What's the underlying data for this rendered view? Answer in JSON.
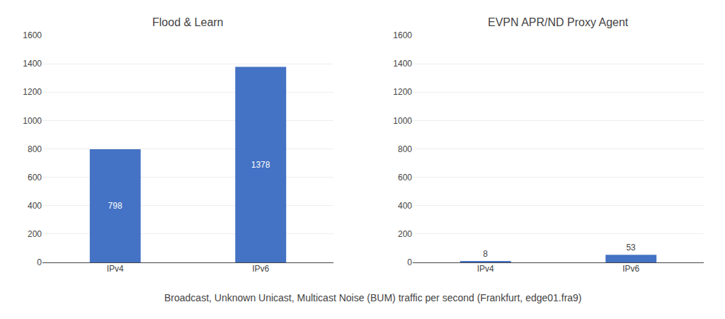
{
  "chart_data": [
    {
      "type": "bar",
      "title": "Flood & Learn",
      "categories": [
        "IPv4",
        "IPv6"
      ],
      "values": [
        798,
        1378
      ],
      "color": "#4472C4",
      "ylim": [
        0,
        1600
      ],
      "yticks": [
        0,
        200,
        400,
        600,
        800,
        1000,
        1200,
        1400,
        1600
      ],
      "grid": true,
      "data_labels": true
    },
    {
      "type": "bar",
      "title": "EVPN APR/ND Proxy Agent",
      "categories": [
        "IPv4",
        "IPv6"
      ],
      "values": [
        8,
        53
      ],
      "color": "#4472C4",
      "ylim": [
        0,
        1600
      ],
      "yticks": [
        0,
        200,
        400,
        600,
        800,
        1000,
        1200,
        1400,
        1600
      ],
      "grid": true,
      "data_labels": true
    }
  ],
  "caption": "Broadcast, Unknown Unicast, Multicast Noise (BUM) traffic per second (Frankfurt, edge01.fra9)"
}
